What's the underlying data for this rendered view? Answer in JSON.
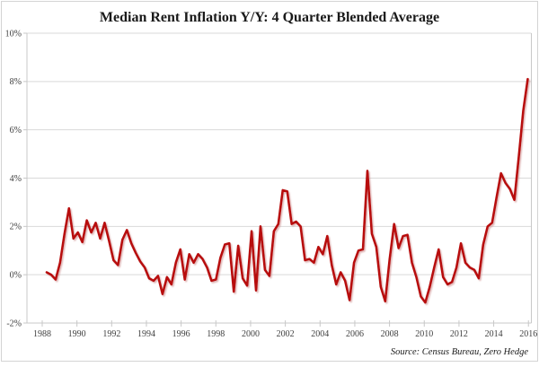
{
  "title": "Median Rent Inflation Y/Y: 4 Quarter Blended Average",
  "source_note": "Source: Census Bureau, Zero Hedge",
  "colors": {
    "line": "#b80f11",
    "line_shadow": "#cf9090",
    "grid": "#d9d9d9",
    "axis": "#c8c8c8",
    "frame": "#d4d4d4",
    "tick_label": "#404040",
    "title": "#1a1a1a",
    "background": "#ffffff"
  },
  "chart_data": {
    "type": "line",
    "title": "Median Rent Inflation Y/Y: 4 Quarter Blended Average",
    "series_name": "Median rent inflation Y/Y, 4-quarter blended average",
    "xlabel": "",
    "ylabel": "",
    "x_start": 1989.0,
    "x_step": 0.25,
    "x_unit": "year (quarterly points)",
    "xlim": [
      1988,
      2016
    ],
    "ylim": [
      -2,
      10
    ],
    "grid": "horizontal",
    "legend": "none",
    "y_tick_labels": [
      "10%",
      "8%",
      "6%",
      "4%",
      "2%",
      "0%",
      "-2%"
    ],
    "y_tick_values": [
      10,
      8,
      6,
      4,
      2,
      0,
      -2
    ],
    "x_tick_labels": [
      "1988",
      "1990",
      "1992",
      "1994",
      "1996",
      "1998",
      "2000",
      "2002",
      "2004",
      "2006",
      "2008",
      "2010",
      "2012",
      "2014",
      "2016"
    ],
    "x_tick_values": [
      1988,
      1990,
      1992,
      1994,
      1996,
      1998,
      2000,
      2002,
      2004,
      2006,
      2008,
      2010,
      2012,
      2014,
      2016
    ],
    "values": [
      0.1,
      0.0,
      -0.2,
      0.5,
      1.7,
      2.75,
      1.5,
      1.75,
      1.35,
      2.25,
      1.75,
      2.15,
      1.5,
      2.15,
      1.4,
      0.6,
      0.4,
      1.45,
      1.85,
      1.3,
      0.9,
      0.55,
      0.3,
      -0.15,
      -0.25,
      -0.05,
      -0.8,
      -0.1,
      -0.4,
      0.5,
      1.05,
      -0.2,
      0.85,
      0.5,
      0.85,
      0.65,
      0.3,
      -0.25,
      -0.2,
      0.7,
      1.25,
      1.3,
      -0.7,
      1.2,
      -0.15,
      -0.45,
      1.8,
      -0.65,
      2.0,
      0.2,
      -0.05,
      1.8,
      2.1,
      3.5,
      3.45,
      2.1,
      2.2,
      2.0,
      0.6,
      0.65,
      0.5,
      1.15,
      0.85,
      1.6,
      0.4,
      -0.4,
      0.1,
      -0.25,
      -1.05,
      0.5,
      1.0,
      1.05,
      4.3,
      1.7,
      1.15,
      -0.5,
      -1.1,
      0.65,
      2.1,
      1.1,
      1.6,
      1.65,
      0.5,
      -0.1,
      -0.9,
      -1.15,
      -0.5,
      0.3,
      1.05,
      -0.1,
      -0.4,
      -0.3,
      0.3,
      1.3,
      0.5,
      0.3,
      0.2,
      -0.15,
      1.25,
      2.0,
      2.15,
      3.2,
      4.2,
      3.8,
      3.55,
      3.1,
      4.9,
      6.8,
      8.1
    ]
  }
}
